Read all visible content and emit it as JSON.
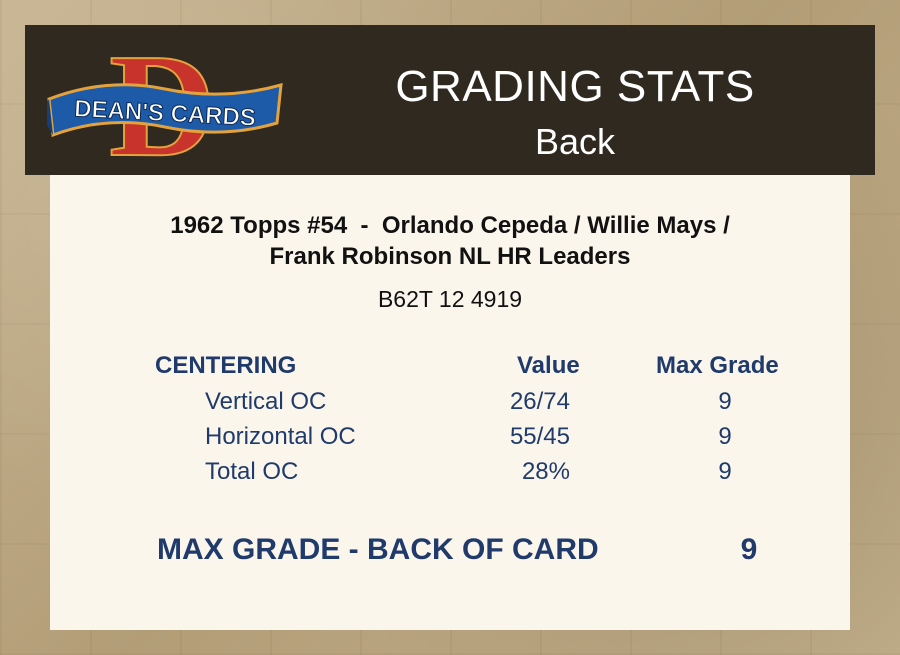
{
  "brand": {
    "logo_letter": "D",
    "logo_text": "DEAN'S CARDS"
  },
  "header": {
    "title": "GRADING STATS",
    "subtitle": "Back"
  },
  "card": {
    "title_line1": "1962 Topps #54  -  Orlando Cepeda / Willie Mays /",
    "title_line2": "Frank Robinson NL HR Leaders",
    "cert_number": "B62T 12 4919"
  },
  "table": {
    "headers": {
      "category": "CENTERING",
      "value": "Value",
      "max_grade": "Max Grade"
    },
    "rows": [
      {
        "label": "Vertical OC",
        "value": "26/74",
        "grade": "9"
      },
      {
        "label": "Horizontal OC",
        "value": "55/45",
        "grade": "9"
      },
      {
        "label": "Total OC",
        "value": "28%",
        "grade": "9"
      }
    ]
  },
  "summary": {
    "label": "MAX GRADE - BACK OF CARD",
    "grade": "9"
  },
  "colors": {
    "header_bg": "#2f2920",
    "panel_bg": "#fbf6ec",
    "navy_text": "#1f3a6b",
    "logo_red": "#c8342b",
    "logo_blue": "#1d5aa8"
  }
}
